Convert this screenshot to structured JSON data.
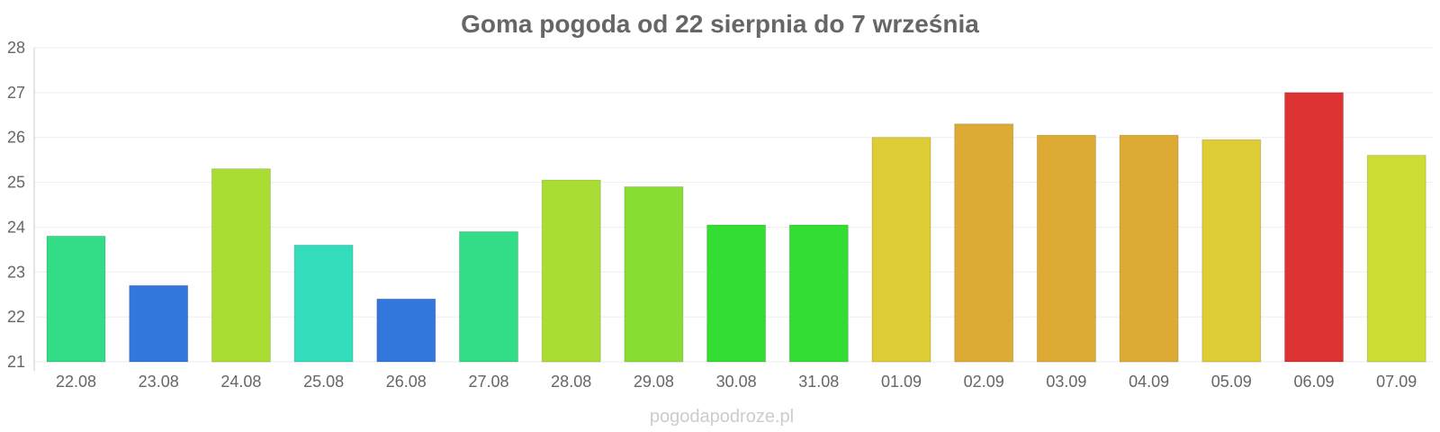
{
  "chart_data": {
    "type": "bar",
    "title": "Goma pogoda od 22 sierpnia do 7 września",
    "categories": [
      "22.08",
      "23.08",
      "24.08",
      "25.08",
      "26.08",
      "27.08",
      "28.08",
      "29.08",
      "30.08",
      "31.08",
      "01.09",
      "02.09",
      "03.09",
      "04.09",
      "05.09",
      "06.09",
      "07.09"
    ],
    "values": [
      23.8,
      22.7,
      25.3,
      23.6,
      22.4,
      23.9,
      25.05,
      24.9,
      24.05,
      24.05,
      26.0,
      26.3,
      26.05,
      26.05,
      25.95,
      27.0,
      25.6
    ],
    "colors": [
      "#33dd88",
      "#3377dd",
      "#aadd33",
      "#33ddbb",
      "#3377dd",
      "#33dd88",
      "#aadd33",
      "#88dd33",
      "#33dd33",
      "#33dd33",
      "#ddcc33",
      "#ddaa33",
      "#ddaa33",
      "#ddaa33",
      "#ddcc33",
      "#dd3333",
      "#ccdd33"
    ],
    "ylim": [
      21,
      28
    ],
    "yticks": [
      "21",
      "22",
      "23",
      "24",
      "25",
      "26",
      "27",
      "28"
    ],
    "grid": true,
    "xlabel": "",
    "ylabel": ""
  },
  "watermark": "pogodapodroze.pl"
}
